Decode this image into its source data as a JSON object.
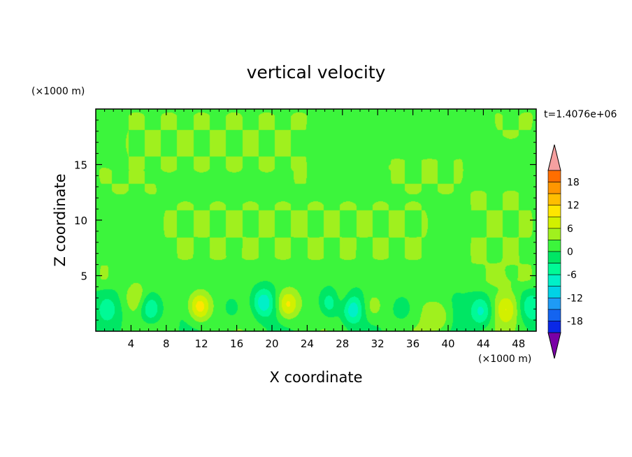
{
  "chart_data": {
    "type": "heatmap",
    "title": "vertical velocity",
    "xlabel": "X coordinate",
    "ylabel": "Z coordinate",
    "x_unit": "(×1000 m)",
    "y_unit": "(×1000 m)",
    "timestamp": "t=1.4076e+06",
    "xlim": [
      0,
      50
    ],
    "ylim": [
      0,
      20
    ],
    "x_ticks": [
      4,
      8,
      12,
      16,
      20,
      24,
      28,
      32,
      36,
      40,
      44,
      48
    ],
    "y_ticks": [
      5,
      10,
      15
    ],
    "colorbar": {
      "min": -21,
      "max": 21,
      "step": 3,
      "labels": [
        18,
        12,
        6,
        0,
        -6,
        -12,
        -18
      ],
      "colors": [
        "#7a00a6",
        "#3a0090",
        "#0000c8",
        "#0a28e6",
        "#1464f0",
        "#1e9bf5",
        "#00d2e6",
        "#00f0c8",
        "#00fa96",
        "#00e664",
        "#3cf53c",
        "#a0f01e",
        "#d2f000",
        "#ffe600",
        "#ffbe00",
        "#ff9600",
        "#ff6e00",
        "#ff3c00",
        "#ff1e1e",
        "#e60000",
        "#f5a0a0"
      ]
    },
    "background_level": 0,
    "features": [
      {
        "kind": "updraft",
        "x": 11.8,
        "z": 2.2,
        "peak": 11
      },
      {
        "kind": "updraft",
        "x": 21.8,
        "z": 2.4,
        "peak": 10
      },
      {
        "kind": "updraft",
        "x": 31.5,
        "z": 2.2,
        "peak": 5
      },
      {
        "kind": "updraft",
        "x": 46.6,
        "z": 2.0,
        "peak": 6
      },
      {
        "kind": "updraft",
        "x": 39.0,
        "z": 1.3,
        "peak": 5
      },
      {
        "kind": "updraft",
        "x": 28.0,
        "z": 2.6,
        "peak": 4
      },
      {
        "kind": "updraft",
        "x": 4.5,
        "z": 3.0,
        "peak": 4
      },
      {
        "kind": "downdraft",
        "x": 6.2,
        "z": 2.0,
        "peak": -9
      },
      {
        "kind": "downdraft",
        "x": 19.0,
        "z": 2.6,
        "peak": -9
      },
      {
        "kind": "downdraft",
        "x": 26.6,
        "z": 2.5,
        "peak": -8
      },
      {
        "kind": "downdraft",
        "x": 29.0,
        "z": 2.0,
        "peak": -10
      },
      {
        "kind": "downdraft",
        "x": 43.8,
        "z": 1.8,
        "peak": -8
      },
      {
        "kind": "downdraft",
        "x": 49.3,
        "z": 2.2,
        "peak": -6
      },
      {
        "kind": "downdraft",
        "x": 15.5,
        "z": 2.0,
        "peak": -4
      },
      {
        "kind": "downdraft",
        "x": 35.0,
        "z": 2.0,
        "peak": -4
      },
      {
        "kind": "downdraft",
        "x": 1.3,
        "z": 2.0,
        "peak": -4
      }
    ],
    "positive_regions": [
      {
        "x": [
          0,
          0.7
        ],
        "z": [
          15,
          20
        ]
      },
      {
        "x": [
          0,
          7.3
        ],
        "z": [
          12,
          15
        ]
      },
      {
        "x": [
          3,
          24
        ],
        "z": [
          14,
          20
        ]
      },
      {
        "x": [
          7.3,
          38
        ],
        "z": [
          6,
          12
        ]
      },
      {
        "x": [
          22,
          24.5
        ],
        "z": [
          6,
          20
        ]
      },
      {
        "x": [
          32,
          39
        ],
        "z": [
          14,
          15.5
        ]
      },
      {
        "x": [
          33,
          42
        ],
        "z": [
          12,
          16
        ]
      },
      {
        "x": [
          42,
          50
        ],
        "z": [
          4,
          13
        ]
      },
      {
        "x": [
          45,
          50
        ],
        "z": [
          17,
          20
        ]
      },
      {
        "x": [
          0,
          2
        ],
        "z": [
          4,
          9
        ]
      }
    ]
  }
}
